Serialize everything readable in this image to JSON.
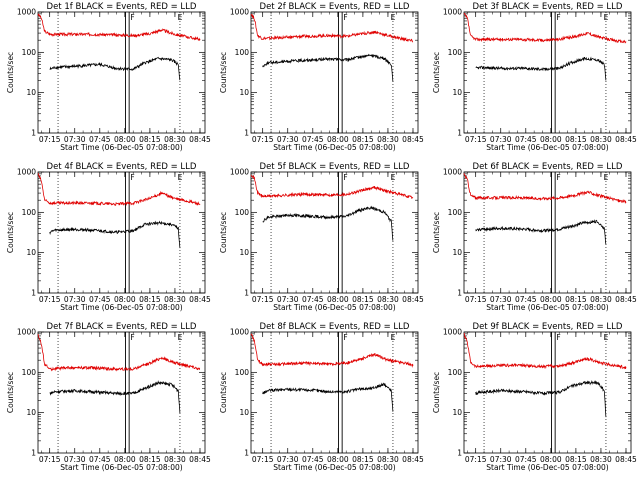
{
  "chart_data": [
    {
      "type": "line",
      "title": "Det 1f BLACK = Events, RED = LLD",
      "xlabel": "Start Time (06-Dec-05 07:08:00)",
      "ylabel": "Counts/sec",
      "xlim": [
        "07:08",
        "08:48"
      ],
      "ylim": [
        1,
        1000
      ],
      "yscale": "log",
      "xticks": [
        "07:15",
        "07:30",
        "07:45",
        "08:00",
        "08:15",
        "08:30",
        "08:45"
      ],
      "yticks": [
        "1",
        "10",
        "100",
        "1000"
      ],
      "markers": [
        "F",
        "E"
      ],
      "series": [
        {
          "color": "#e00000",
          "x": [
            "07:08",
            "07:10",
            "07:12",
            "07:15",
            "07:25",
            "07:40",
            "07:55",
            "08:05",
            "08:15",
            "08:22",
            "08:30",
            "08:40",
            "08:45"
          ],
          "y": [
            900,
            700,
            330,
            280,
            280,
            280,
            270,
            260,
            290,
            360,
            280,
            230,
            210
          ]
        },
        {
          "color": "#000000",
          "x": [
            "07:15",
            "07:18",
            "07:30",
            "07:45",
            "07:55",
            "08:05",
            "08:12",
            "08:20",
            "08:28",
            "08:32",
            "08:33"
          ],
          "y": [
            38,
            42,
            45,
            50,
            40,
            38,
            55,
            70,
            65,
            50,
            20
          ]
        }
      ]
    },
    {
      "type": "line",
      "title": "Det 2f BLACK = Events, RED = LLD",
      "xlabel": "Start Time (06-Dec-05 07:08:00)",
      "ylabel": "Counts/sec",
      "xlim": [
        "07:08",
        "08:48"
      ],
      "ylim": [
        1,
        1000
      ],
      "yscale": "log",
      "xticks": [
        "07:15",
        "07:30",
        "07:45",
        "08:00",
        "08:15",
        "08:30",
        "08:45"
      ],
      "yticks": [
        "1",
        "10",
        "100",
        "1000"
      ],
      "markers": [
        "F",
        "E"
      ],
      "series": [
        {
          "color": "#e00000",
          "x": [
            "07:08",
            "07:10",
            "07:12",
            "07:15",
            "07:25",
            "07:40",
            "07:55",
            "08:05",
            "08:15",
            "08:22",
            "08:30",
            "08:40",
            "08:45"
          ],
          "y": [
            900,
            700,
            260,
            220,
            230,
            250,
            260,
            250,
            290,
            320,
            260,
            210,
            190
          ]
        },
        {
          "color": "#000000",
          "x": [
            "07:15",
            "07:18",
            "07:30",
            "07:45",
            "07:55",
            "08:05",
            "08:12",
            "08:20",
            "08:28",
            "08:32",
            "08:33"
          ],
          "y": [
            45,
            55,
            60,
            65,
            68,
            65,
            75,
            85,
            70,
            50,
            20
          ]
        }
      ]
    },
    {
      "type": "line",
      "title": "Det 3f BLACK = Events, RED = LLD",
      "xlabel": "Start Time (06-Dec-05 07:08:00)",
      "ylabel": "Counts/sec",
      "xlim": [
        "07:08",
        "08:48"
      ],
      "ylim": [
        1,
        1000
      ],
      "yscale": "log",
      "xticks": [
        "07:15",
        "07:30",
        "07:45",
        "08:00",
        "08:15",
        "08:30",
        "08:45"
      ],
      "yticks": [
        "1",
        "10",
        "100",
        "1000"
      ],
      "markers": [
        "F",
        "E"
      ],
      "series": [
        {
          "color": "#e00000",
          "x": [
            "07:08",
            "07:10",
            "07:12",
            "07:15",
            "07:25",
            "07:40",
            "07:55",
            "08:05",
            "08:15",
            "08:22",
            "08:30",
            "08:40",
            "08:45"
          ],
          "y": [
            900,
            700,
            250,
            210,
            210,
            210,
            200,
            210,
            250,
            300,
            230,
            190,
            180
          ]
        },
        {
          "color": "#000000",
          "x": [
            "07:15",
            "07:18",
            "07:30",
            "07:45",
            "07:55",
            "08:05",
            "08:12",
            "08:20",
            "08:28",
            "08:32",
            "08:33"
          ],
          "y": [
            40,
            42,
            40,
            40,
            38,
            40,
            55,
            70,
            65,
            50,
            20
          ]
        }
      ]
    },
    {
      "type": "line",
      "title": "Det 4f BLACK = Events, RED = LLD",
      "xlabel": "Start Time (06-Dec-05 07:08:00)",
      "ylabel": "Counts/sec",
      "xlim": [
        "07:08",
        "08:48"
      ],
      "ylim": [
        1,
        1000
      ],
      "yscale": "log",
      "xticks": [
        "07:15",
        "07:30",
        "07:45",
        "08:00",
        "08:15",
        "08:30",
        "08:45"
      ],
      "yticks": [
        "1",
        "10",
        "100",
        "1000"
      ],
      "markers": [
        "F",
        "E"
      ],
      "series": [
        {
          "color": "#e00000",
          "x": [
            "07:08",
            "07:10",
            "07:12",
            "07:15",
            "07:25",
            "07:40",
            "07:55",
            "08:05",
            "08:15",
            "08:22",
            "08:30",
            "08:40",
            "08:45"
          ],
          "y": [
            900,
            600,
            200,
            170,
            170,
            170,
            160,
            170,
            220,
            300,
            220,
            180,
            160
          ]
        },
        {
          "color": "#000000",
          "x": [
            "07:15",
            "07:18",
            "07:30",
            "07:45",
            "07:55",
            "08:05",
            "08:12",
            "08:20",
            "08:28",
            "08:32",
            "08:33"
          ],
          "y": [
            32,
            36,
            38,
            35,
            32,
            35,
            50,
            55,
            50,
            40,
            12
          ]
        }
      ]
    },
    {
      "type": "line",
      "title": "Det 5f BLACK = Events, RED = LLD",
      "xlabel": "Start Time (06-Dec-05 07:08:00)",
      "ylabel": "Counts/sec",
      "xlim": [
        "07:08",
        "08:48"
      ],
      "ylim": [
        1,
        1000
      ],
      "yscale": "log",
      "xticks": [
        "07:15",
        "07:30",
        "07:45",
        "08:00",
        "08:15",
        "08:30",
        "08:45"
      ],
      "yticks": [
        "1",
        "10",
        "100",
        "1000"
      ],
      "markers": [
        "F",
        "E"
      ],
      "series": [
        {
          "color": "#e00000",
          "x": [
            "07:08",
            "07:10",
            "07:12",
            "07:15",
            "07:25",
            "07:40",
            "07:55",
            "08:05",
            "08:15",
            "08:22",
            "08:30",
            "08:40",
            "08:45"
          ],
          "y": [
            900,
            700,
            300,
            250,
            260,
            280,
            270,
            280,
            350,
            420,
            330,
            260,
            230
          ]
        },
        {
          "color": "#000000",
          "x": [
            "07:15",
            "07:18",
            "07:30",
            "07:45",
            "07:55",
            "08:05",
            "08:12",
            "08:20",
            "08:28",
            "08:32",
            "08:33"
          ],
          "y": [
            60,
            75,
            85,
            80,
            75,
            80,
            110,
            130,
            100,
            60,
            20
          ]
        }
      ]
    },
    {
      "type": "line",
      "title": "Det 6f BLACK = Events, RED = LLD",
      "xlabel": "Start Time (06-Dec-05 07:08:00)",
      "ylabel": "Counts/sec",
      "xlim": [
        "07:08",
        "08:48"
      ],
      "ylim": [
        1,
        1000
      ],
      "yscale": "log",
      "xticks": [
        "07:15",
        "07:30",
        "07:45",
        "08:00",
        "08:15",
        "08:30",
        "08:45"
      ],
      "yticks": [
        "1",
        "10",
        "100",
        "1000"
      ],
      "markers": [
        "F",
        "E"
      ],
      "series": [
        {
          "color": "#e00000",
          "x": [
            "07:08",
            "07:10",
            "07:12",
            "07:15",
            "07:25",
            "07:40",
            "07:55",
            "08:05",
            "08:15",
            "08:22",
            "08:30",
            "08:40",
            "08:45"
          ],
          "y": [
            900,
            650,
            260,
            230,
            230,
            230,
            220,
            230,
            270,
            320,
            250,
            200,
            180
          ]
        },
        {
          "color": "#000000",
          "x": [
            "07:15",
            "07:18",
            "07:30",
            "07:45",
            "07:55",
            "08:05",
            "08:12",
            "08:20",
            "08:28",
            "08:32",
            "08:33"
          ],
          "y": [
            35,
            38,
            40,
            38,
            35,
            38,
            45,
            55,
            60,
            40,
            15
          ]
        }
      ]
    },
    {
      "type": "line",
      "title": "Det 7f BLACK = Events, RED = LLD",
      "xlabel": "Start Time (06-Dec-05 07:08:00)",
      "ylabel": "Counts/sec",
      "xlim": [
        "07:08",
        "08:48"
      ],
      "ylim": [
        1,
        1000
      ],
      "yscale": "log",
      "xticks": [
        "07:15",
        "07:30",
        "07:45",
        "08:00",
        "08:15",
        "08:30",
        "08:45"
      ],
      "yticks": [
        "1",
        "10",
        "100",
        "1000"
      ],
      "markers": [
        "F",
        "E"
      ],
      "series": [
        {
          "color": "#e00000",
          "x": [
            "07:08",
            "07:10",
            "07:12",
            "07:15",
            "07:25",
            "07:40",
            "07:55",
            "08:05",
            "08:15",
            "08:22",
            "08:30",
            "08:40",
            "08:45"
          ],
          "y": [
            900,
            500,
            160,
            120,
            130,
            130,
            120,
            120,
            170,
            230,
            170,
            140,
            120
          ]
        },
        {
          "color": "#000000",
          "x": [
            "07:15",
            "07:18",
            "07:30",
            "07:45",
            "07:55",
            "08:05",
            "08:12",
            "08:20",
            "08:28",
            "08:32",
            "08:33"
          ],
          "y": [
            30,
            33,
            35,
            32,
            30,
            30,
            40,
            55,
            50,
            35,
            10
          ]
        }
      ]
    },
    {
      "type": "line",
      "title": "Det 8f BLACK = Events, RED = LLD",
      "xlabel": "Start Time (06-Dec-05 07:08:00)",
      "ylabel": "Counts/sec",
      "xlim": [
        "07:08",
        "08:48"
      ],
      "ylim": [
        1,
        1000
      ],
      "yscale": "log",
      "xticks": [
        "07:15",
        "07:30",
        "07:45",
        "08:00",
        "08:15",
        "08:30",
        "08:45"
      ],
      "yticks": [
        "1",
        "10",
        "100",
        "1000"
      ],
      "markers": [
        "F",
        "E"
      ],
      "series": [
        {
          "color": "#e00000",
          "x": [
            "07:08",
            "07:10",
            "07:12",
            "07:15",
            "07:25",
            "07:40",
            "07:55",
            "08:05",
            "08:15",
            "08:22",
            "08:30",
            "08:40",
            "08:45"
          ],
          "y": [
            900,
            600,
            200,
            160,
            160,
            170,
            160,
            170,
            220,
            280,
            200,
            170,
            150
          ]
        },
        {
          "color": "#000000",
          "x": [
            "07:15",
            "07:18",
            "07:30",
            "07:45",
            "07:55",
            "08:05",
            "08:12",
            "08:20",
            "08:28",
            "08:32",
            "08:33"
          ],
          "y": [
            30,
            35,
            38,
            36,
            33,
            33,
            38,
            40,
            50,
            35,
            10
          ]
        }
      ]
    },
    {
      "type": "line",
      "title": "Det 9f BLACK = Events, RED = LLD",
      "xlabel": "Start Time (06-Dec-05 07:08:00)",
      "ylabel": "Counts/sec",
      "xlim": [
        "07:08",
        "08:48"
      ],
      "ylim": [
        1,
        1000
      ],
      "yscale": "log",
      "xticks": [
        "07:15",
        "07:30",
        "07:45",
        "08:00",
        "08:15",
        "08:30",
        "08:45"
      ],
      "yticks": [
        "1",
        "10",
        "100",
        "1000"
      ],
      "markers": [
        "F",
        "E"
      ],
      "series": [
        {
          "color": "#e00000",
          "x": [
            "07:08",
            "07:10",
            "07:12",
            "07:15",
            "07:25",
            "07:40",
            "07:55",
            "08:05",
            "08:15",
            "08:22",
            "08:30",
            "08:40",
            "08:45"
          ],
          "y": [
            900,
            550,
            180,
            140,
            145,
            150,
            140,
            145,
            180,
            220,
            170,
            145,
            130
          ]
        },
        {
          "color": "#000000",
          "x": [
            "07:15",
            "07:18",
            "07:30",
            "07:45",
            "07:55",
            "08:05",
            "08:12",
            "08:20",
            "08:28",
            "08:32",
            "08:33"
          ],
          "y": [
            30,
            32,
            35,
            33,
            30,
            32,
            45,
            55,
            55,
            35,
            8
          ]
        }
      ]
    }
  ]
}
